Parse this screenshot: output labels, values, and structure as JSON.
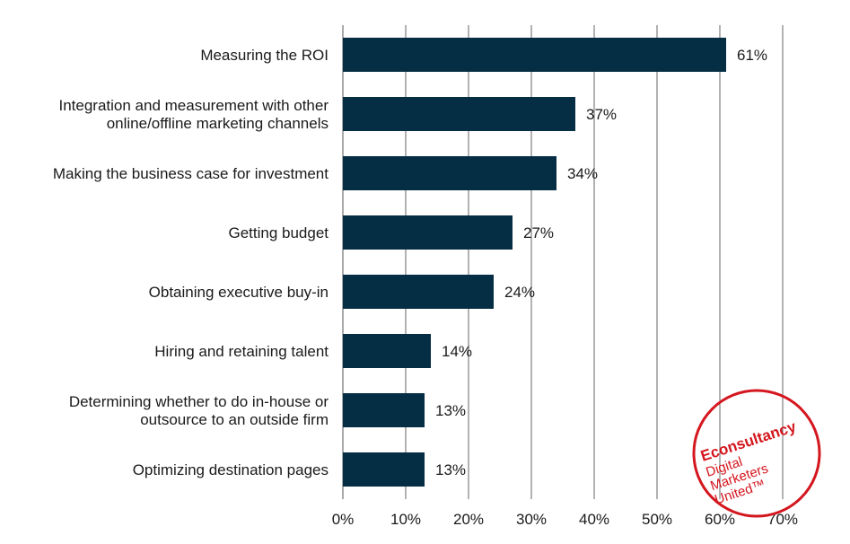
{
  "chart_data": {
    "type": "bar",
    "orientation": "horizontal",
    "categories": [
      "Measuring the ROI",
      "Integration and measurement with other|online/offline marketing channels",
      "Making the business case for investment",
      "Getting budget",
      "Obtaining executive buy-in",
      "Hiring and retaining talent",
      "Determining whether to do in-house or|outsource to an outside firm",
      "Optimizing destination pages"
    ],
    "values": [
      61,
      37,
      34,
      27,
      24,
      14,
      13,
      13
    ],
    "data_labels": [
      "61%",
      "37%",
      "34%",
      "27%",
      "24%",
      "14%",
      "13%",
      "13%"
    ],
    "x_ticks": [
      "0%",
      "10%",
      "20%",
      "30%",
      "40%",
      "50%",
      "60%",
      "70%"
    ],
    "xlim": [
      0,
      70
    ],
    "grid": "vertical",
    "bar_color": "#052e44",
    "title": "",
    "xlabel": "",
    "ylabel": ""
  },
  "logo": {
    "name": "Econsultancy",
    "tagline": [
      "Digital",
      "Marketers",
      "United™"
    ],
    "color": "#d4161e"
  }
}
